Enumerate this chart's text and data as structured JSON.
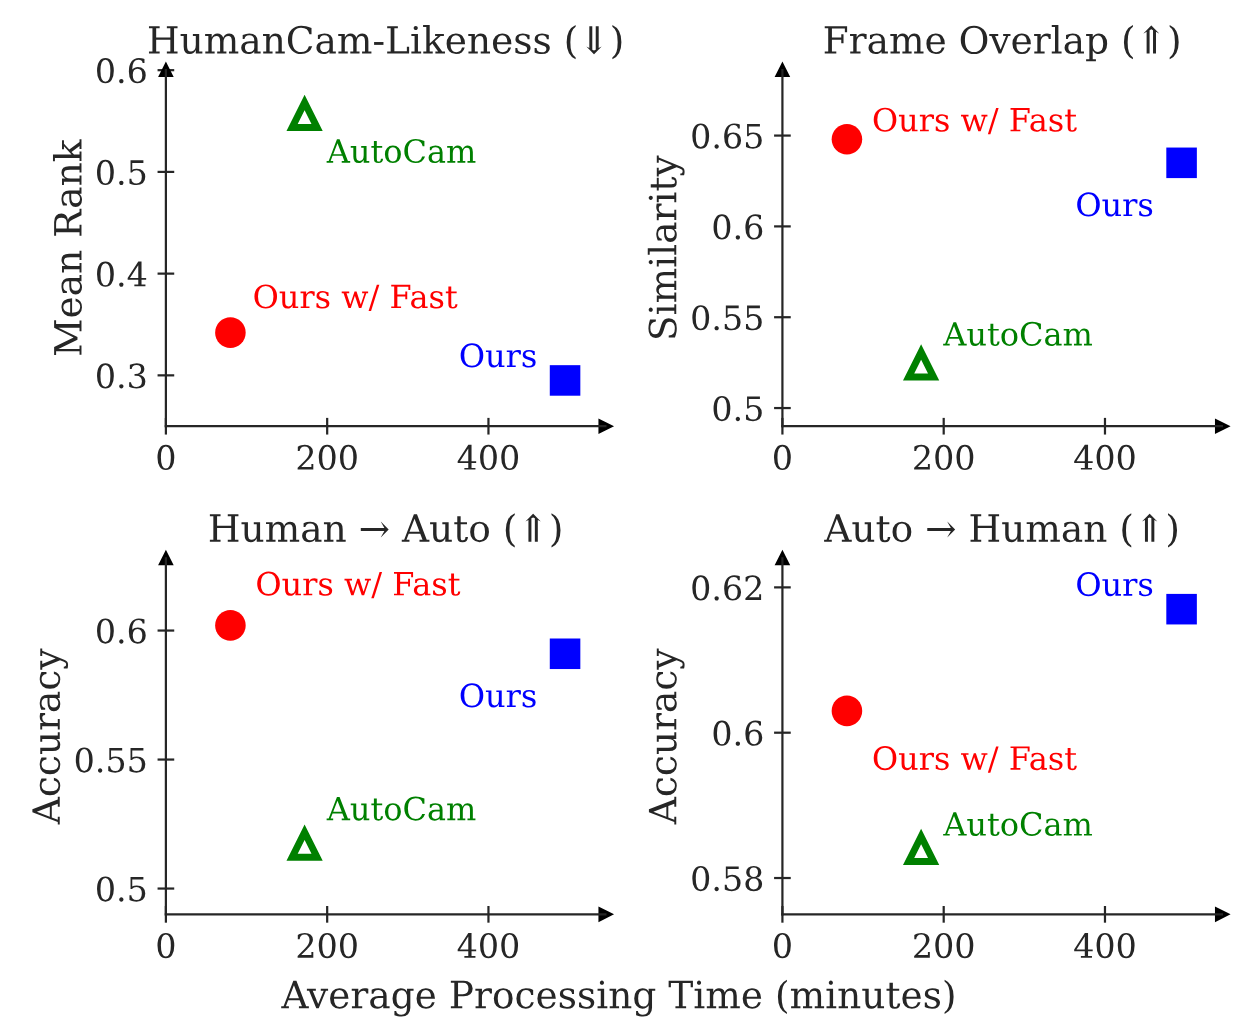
{
  "chart_data": [
    {
      "type": "scatter",
      "title": "HumanCam-Likeness (⇓)",
      "ylabel": "Mean Rank",
      "xlim": [
        0,
        545
      ],
      "xticks": [
        0,
        200,
        400
      ],
      "ylim": [
        0.25,
        0.6
      ],
      "yticks": [
        0.3,
        0.4,
        0.5,
        0.6
      ],
      "grid": false,
      "legend": false,
      "series": [
        {
          "name": "Ours w/ Fast",
          "color": "#ff0000",
          "marker": "circle",
          "x": [
            80
          ],
          "values": [
            0.342
          ]
        },
        {
          "name": "AutoCam",
          "color": "#008000",
          "marker": "triangle",
          "x": [
            172
          ],
          "values": [
            0.556
          ]
        },
        {
          "name": "Ours",
          "color": "#0000ff",
          "marker": "square",
          "x": [
            495
          ],
          "values": [
            0.295
          ]
        }
      ]
    },
    {
      "type": "scatter",
      "title": "Frame Overlap (⇑)",
      "ylabel": "Similarity",
      "xlim": [
        0,
        545
      ],
      "xticks": [
        0,
        200,
        400
      ],
      "ylim": [
        0.49,
        0.686
      ],
      "yticks": [
        0.5,
        0.55,
        0.6,
        0.65
      ],
      "grid": false,
      "legend": false,
      "series": [
        {
          "name": "Ours w/ Fast",
          "color": "#ff0000",
          "marker": "circle",
          "x": [
            80
          ],
          "values": [
            0.648
          ]
        },
        {
          "name": "AutoCam",
          "color": "#008000",
          "marker": "triangle",
          "x": [
            172
          ],
          "values": [
            0.524
          ]
        },
        {
          "name": "Ours",
          "color": "#0000ff",
          "marker": "square",
          "x": [
            495
          ],
          "values": [
            0.635
          ]
        }
      ]
    },
    {
      "type": "scatter",
      "title": "Human → Auto (⇑)",
      "ylabel": "Accuracy",
      "xlabel": "Average Processing Time (minutes)",
      "xlim": [
        0,
        545
      ],
      "xticks": [
        0,
        200,
        400
      ],
      "ylim": [
        0.49,
        0.628
      ],
      "yticks": [
        0.5,
        0.55,
        0.6
      ],
      "grid": false,
      "legend": false,
      "series": [
        {
          "name": "Ours w/ Fast",
          "color": "#ff0000",
          "marker": "circle",
          "x": [
            80
          ],
          "values": [
            0.602
          ]
        },
        {
          "name": "AutoCam",
          "color": "#008000",
          "marker": "triangle",
          "x": [
            172
          ],
          "values": [
            0.517
          ]
        },
        {
          "name": "Ours",
          "color": "#0000ff",
          "marker": "square",
          "x": [
            495
          ],
          "values": [
            0.591
          ]
        }
      ]
    },
    {
      "type": "scatter",
      "title": "Auto → Human (⇑)",
      "ylabel": "Accuracy",
      "xlim": [
        0,
        545
      ],
      "xticks": [
        0,
        200,
        400
      ],
      "ylim": [
        0.575,
        0.624
      ],
      "yticks": [
        0.58,
        0.6,
        0.62
      ],
      "grid": false,
      "legend": false,
      "series": [
        {
          "name": "Ours w/ Fast",
          "color": "#ff0000",
          "marker": "circle",
          "x": [
            80
          ],
          "values": [
            0.603
          ]
        },
        {
          "name": "AutoCam",
          "color": "#008000",
          "marker": "triangle",
          "x": [
            172
          ],
          "values": [
            0.584
          ]
        },
        {
          "name": "Ours",
          "color": "#0000ff",
          "marker": "square",
          "x": [
            495
          ],
          "values": [
            0.617
          ]
        }
      ]
    }
  ]
}
